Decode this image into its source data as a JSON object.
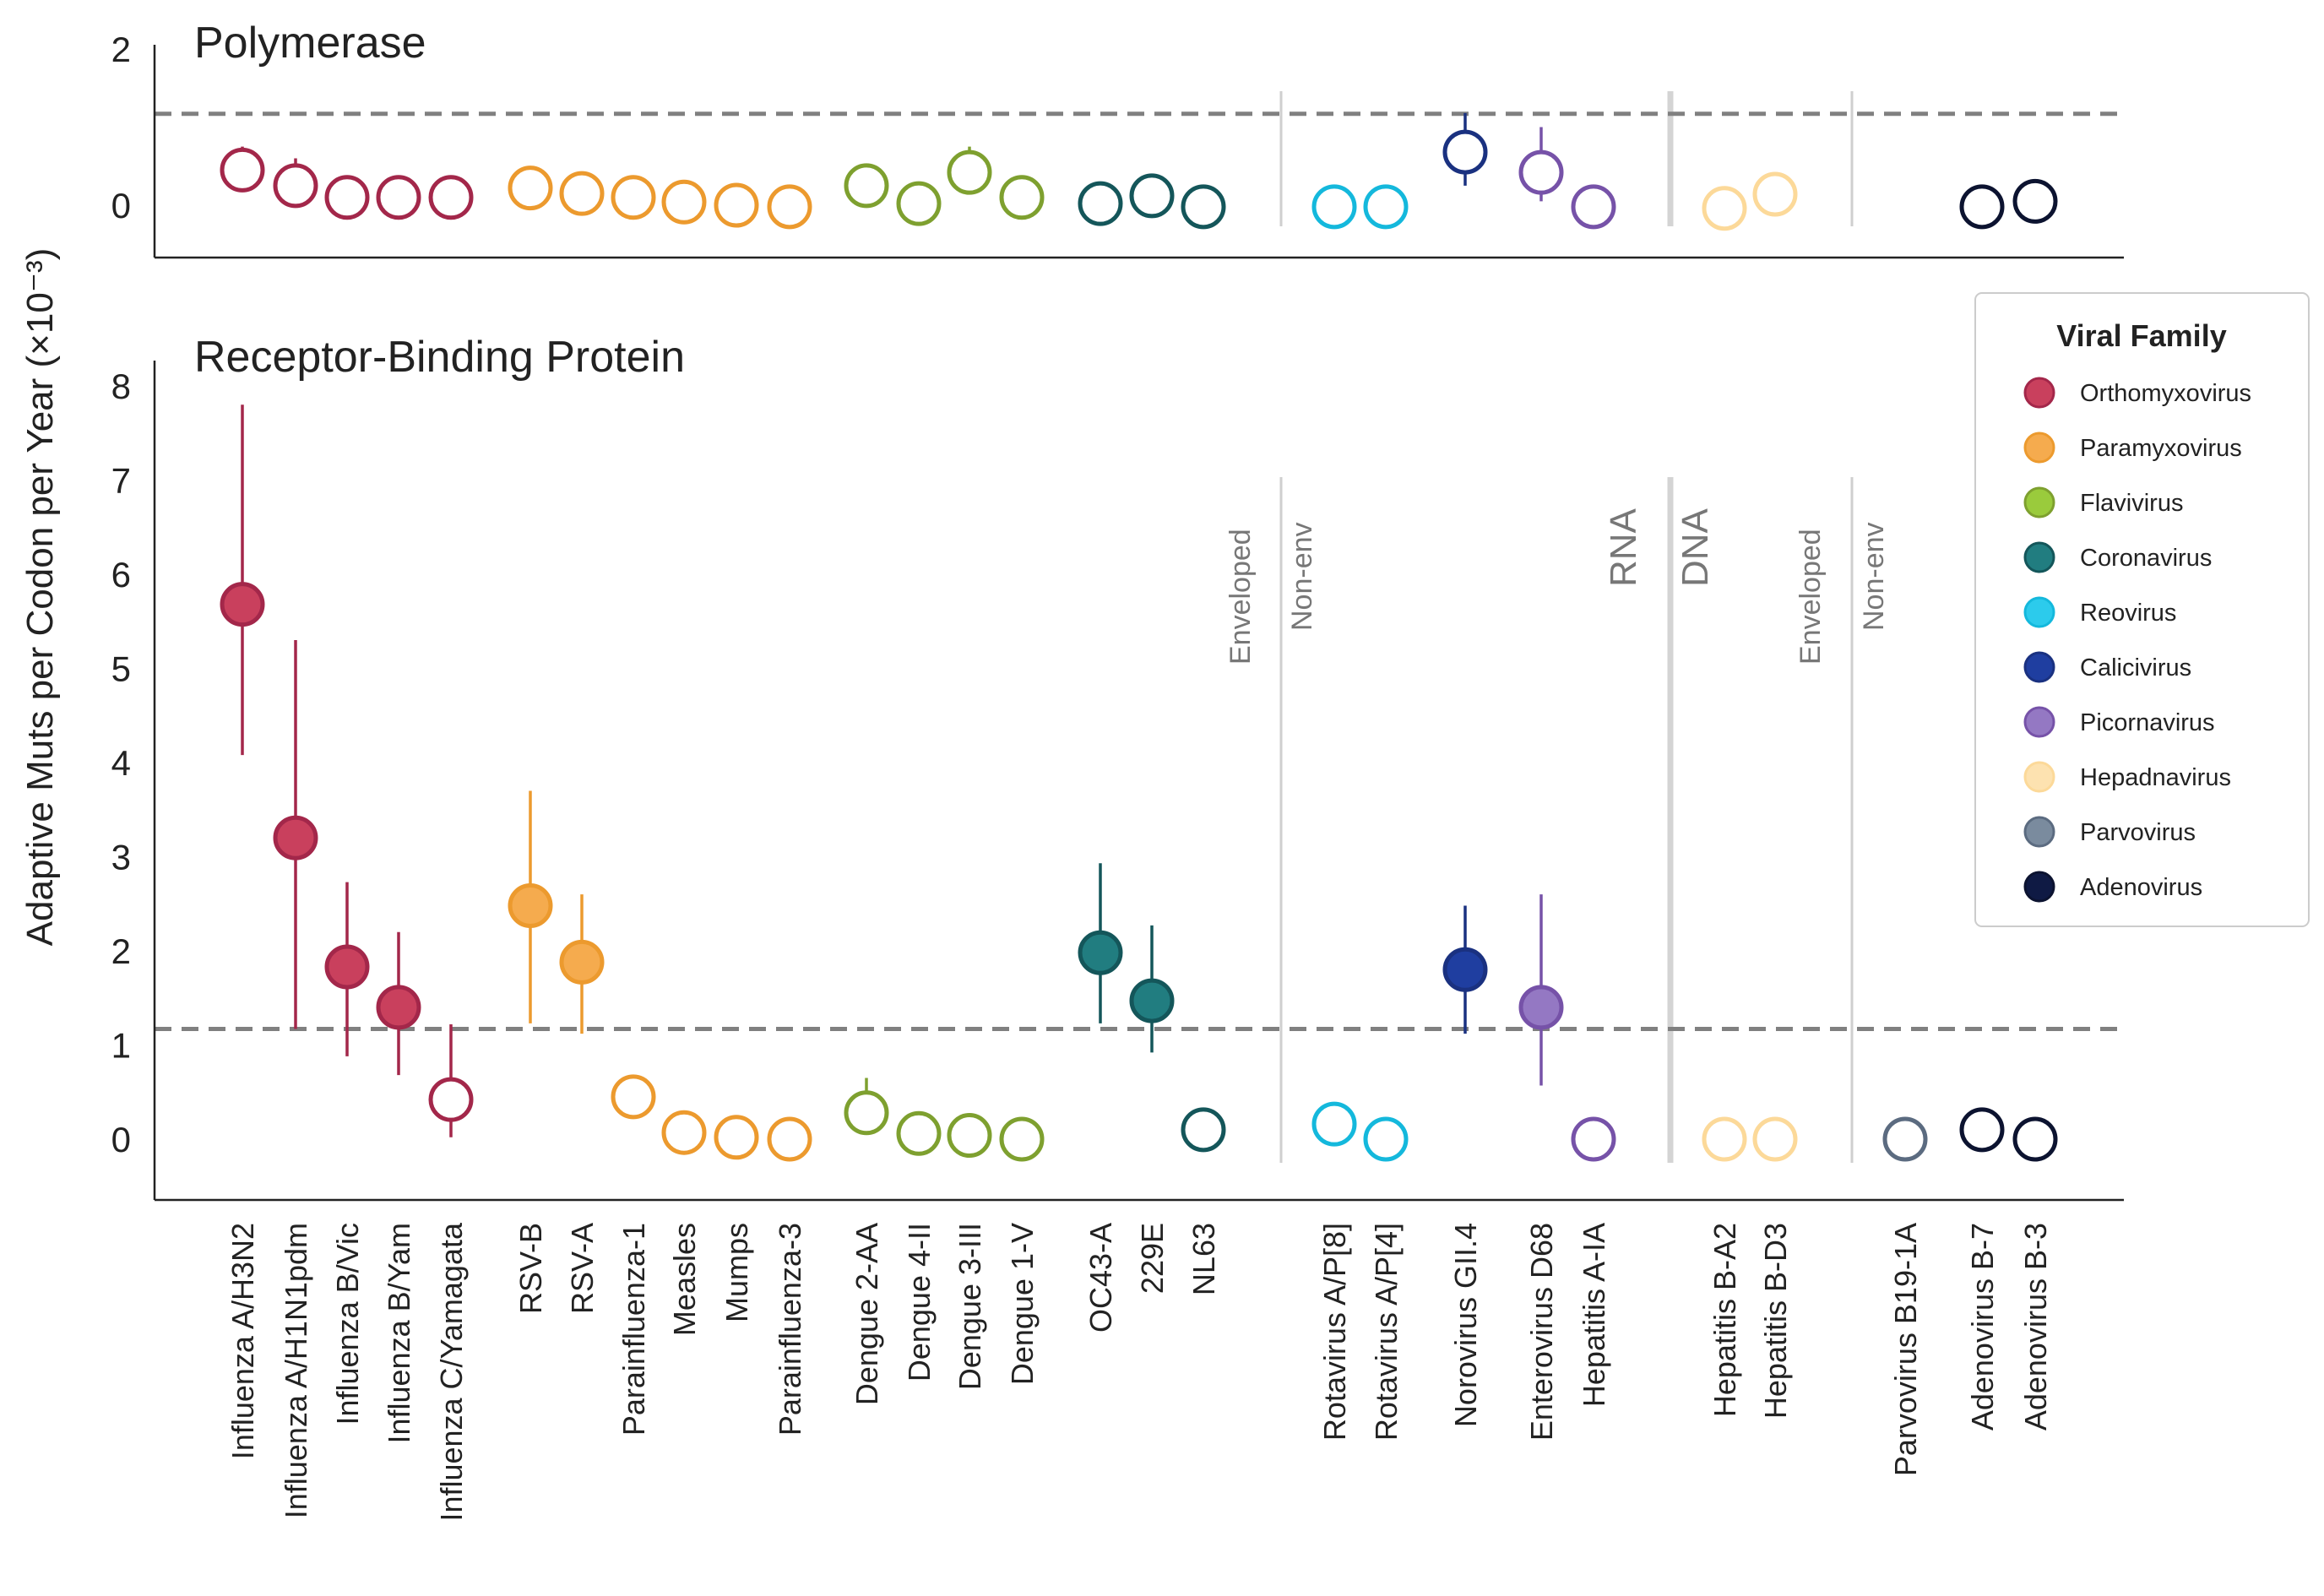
{
  "chart_data": {
    "type": "scatter",
    "ylabel": "Adaptive Muts per Codon per Year (×10⁻³)",
    "viruses": [
      "Influenza A/H3N2",
      "Influenza A/H1N1pdm",
      "Influenza B/Vic",
      "Influenza B/Yam",
      "Influenza C/Yamagata",
      "RSV-B",
      "RSV-A",
      "Parainfluenza-1",
      "Measles",
      "Mumps",
      "Parainfluenza-3",
      "Dengue 2-AA",
      "Dengue 4-II",
      "Dengue 3-III",
      "Dengue 1-V",
      "OC43-A",
      "229E",
      "NL63",
      "Rotavirus A/P[8]",
      "Rotavirus A/P[4]",
      "Norovirus GII.4",
      "Enterovirus D68",
      "Hepatitis A-IA",
      "Hepatitis B-A2",
      "Hepatitis B-D3",
      "Parvovirus B19-1A",
      "Adenovirus B-7",
      "Adenovirus B-3"
    ],
    "families": [
      "Orthomyxovirus",
      "Orthomyxovirus",
      "Orthomyxovirus",
      "Orthomyxovirus",
      "Orthomyxovirus",
      "Paramyxovirus",
      "Paramyxovirus",
      "Paramyxovirus",
      "Paramyxovirus",
      "Paramyxovirus",
      "Paramyxovirus",
      "Flavivirus",
      "Flavivirus",
      "Flavivirus",
      "Flavivirus",
      "Coronavirus",
      "Coronavirus",
      "Coronavirus",
      "Reovirus",
      "Reovirus",
      "Calicivirus",
      "Picornavirus",
      "Picornavirus",
      "Hepadnavirus",
      "Hepadnavirus",
      "Parvovirus",
      "Adenovirus",
      "Adenovirus"
    ],
    "polymerase": {
      "title": "Polymerase",
      "yticks": [
        0,
        2
      ],
      "ylim": [
        -0.65,
        2.0
      ],
      "reference_line": 1.17,
      "points": [
        {
          "x": "Influenza A/H3N2",
          "y": 0.45,
          "lo": 0.45,
          "hi": 0.75,
          "filled": false
        },
        {
          "x": "Influenza A/H1N1pdm",
          "y": 0.25,
          "lo": 0.25,
          "hi": 0.6,
          "filled": false
        },
        {
          "x": "Influenza B/Vic",
          "y": 0.1,
          "filled": false
        },
        {
          "x": "Influenza B/Yam",
          "y": 0.1,
          "filled": false
        },
        {
          "x": "Influenza C/Yamagata",
          "y": 0.1,
          "filled": false
        },
        {
          "x": "RSV-B",
          "y": 0.22,
          "filled": false
        },
        {
          "x": "RSV-A",
          "y": 0.15,
          "filled": false
        },
        {
          "x": "Parainfluenza-1",
          "y": 0.1,
          "filled": false
        },
        {
          "x": "Measles",
          "y": 0.04,
          "filled": false
        },
        {
          "x": "Mumps",
          "y": 0.0,
          "filled": false
        },
        {
          "x": "Parainfluenza-3",
          "y": -0.02,
          "filled": false
        },
        {
          "x": "Dengue 2-AA",
          "y": 0.25,
          "filled": false
        },
        {
          "x": "Dengue 4-II",
          "y": 0.02,
          "filled": false
        },
        {
          "x": "Dengue 3-III",
          "y": 0.42,
          "lo": 0.42,
          "hi": 0.75,
          "filled": false
        },
        {
          "x": "Dengue 1-V",
          "y": 0.1,
          "filled": false
        },
        {
          "x": "OC43-A",
          "y": 0.02,
          "filled": false
        },
        {
          "x": "229E",
          "y": 0.12,
          "filled": false
        },
        {
          "x": "NL63",
          "y": -0.02,
          "filled": false
        },
        {
          "x": "Rotavirus A/P[8]",
          "y": -0.02,
          "filled": false
        },
        {
          "x": "Rotavirus A/P[4]",
          "y": -0.02,
          "filled": false
        },
        {
          "x": "Norovirus GII.4",
          "y": 0.68,
          "lo": 0.25,
          "hi": 1.18,
          "filled": false
        },
        {
          "x": "Enterovirus D68",
          "y": 0.42,
          "lo": 0.05,
          "hi": 1.0,
          "filled": false
        },
        {
          "x": "Hepatitis A-IA",
          "y": -0.02,
          "filled": false
        },
        {
          "x": "Hepatitis B-A2",
          "y": -0.04,
          "filled": false
        },
        {
          "x": "Hepatitis B-D3",
          "y": 0.14,
          "filled": false
        },
        {
          "x": "Adenovirus B-7",
          "y": -0.02,
          "filled": false
        },
        {
          "x": "Adenovirus B-3",
          "y": 0.05,
          "filled": false
        }
      ]
    },
    "receptor_binding": {
      "title": "Receptor-Binding Protein",
      "yticks": [
        0,
        1,
        2,
        3,
        4,
        5,
        6,
        7,
        8
      ],
      "ylim": [
        -0.65,
        8.2
      ],
      "reference_line": 1.17,
      "points": [
        {
          "x": "Influenza A/H3N2",
          "y": 5.68,
          "lo": 4.08,
          "hi": 7.8,
          "filled": true
        },
        {
          "x": "Influenza A/H1N1pdm",
          "y": 3.2,
          "lo": 1.17,
          "hi": 5.3,
          "filled": true
        },
        {
          "x": "Influenza B/Vic",
          "y": 1.83,
          "lo": 0.88,
          "hi": 2.73,
          "filled": true
        },
        {
          "x": "Influenza B/Yam",
          "y": 1.4,
          "lo": 0.68,
          "hi": 2.2,
          "filled": true
        },
        {
          "x": "Influenza C/Yamagata",
          "y": 0.42,
          "lo": 0.02,
          "hi": 1.22,
          "filled": false
        },
        {
          "x": "RSV-B",
          "y": 2.48,
          "lo": 1.23,
          "hi": 3.7,
          "filled": true
        },
        {
          "x": "RSV-A",
          "y": 1.88,
          "lo": 1.12,
          "hi": 2.6,
          "filled": true
        },
        {
          "x": "Parainfluenza-1",
          "y": 0.45,
          "filled": false
        },
        {
          "x": "Measles",
          "y": 0.07,
          "filled": false
        },
        {
          "x": "Mumps",
          "y": 0.02,
          "filled": false
        },
        {
          "x": "Parainfluenza-3",
          "y": 0.0,
          "filled": false
        },
        {
          "x": "Dengue 2-AA",
          "y": 0.28,
          "lo": 0.05,
          "hi": 0.65,
          "filled": false
        },
        {
          "x": "Dengue 4-II",
          "y": 0.06,
          "filled": false
        },
        {
          "x": "Dengue 3-III",
          "y": 0.04,
          "filled": false
        },
        {
          "x": "Dengue 1-V",
          "y": 0.0,
          "filled": false
        },
        {
          "x": "OC43-A",
          "y": 1.98,
          "lo": 1.23,
          "hi": 2.93,
          "filled": true
        },
        {
          "x": "229E",
          "y": 1.47,
          "lo": 0.92,
          "hi": 2.27,
          "filled": true
        },
        {
          "x": "NL63",
          "y": 0.1,
          "filled": false
        },
        {
          "x": "Rotavirus A/P[8]",
          "y": 0.16,
          "filled": false
        },
        {
          "x": "Rotavirus A/P[4]",
          "y": 0.0,
          "filled": false
        },
        {
          "x": "Norovirus GII.4",
          "y": 1.8,
          "lo": 1.12,
          "hi": 2.48,
          "filled": true
        },
        {
          "x": "Enterovirus D68",
          "y": 1.4,
          "lo": 0.57,
          "hi": 2.6,
          "filled": true
        },
        {
          "x": "Hepatitis A-IA",
          "y": 0.0,
          "filled": false
        },
        {
          "x": "Hepatitis B-A2",
          "y": 0.0,
          "filled": false
        },
        {
          "x": "Hepatitis B-D3",
          "y": 0.0,
          "filled": false
        },
        {
          "x": "Parvovirus B19-1A",
          "y": 0.0,
          "filled": false
        },
        {
          "x": "Adenovirus B-7",
          "y": 0.1,
          "filled": false
        },
        {
          "x": "Adenovirus B-3",
          "y": 0.0,
          "filled": false
        }
      ]
    },
    "group_labels": [
      {
        "text": "Enveloped",
        "size": "small"
      },
      {
        "text": "Non-env",
        "size": "small"
      },
      {
        "text": "RNA",
        "size": "large"
      },
      {
        "text": "DNA",
        "size": "large"
      },
      {
        "text": "Enveloped",
        "size": "small"
      },
      {
        "text": "Non-env",
        "size": "small"
      }
    ],
    "legend": {
      "title": "Viral Family",
      "placement": "right",
      "entries": [
        "Orthomyxovirus",
        "Paramyxovirus",
        "Flavivirus",
        "Coronavirus",
        "Reovirus",
        "Calicivirus",
        "Picornavirus",
        "Hepadnavirus",
        "Parvovirus",
        "Adenovirus"
      ]
    },
    "colors": {
      "Orthomyxovirus": {
        "stroke": "#a3274a",
        "fill": "#c9405d"
      },
      "Paramyxovirus": {
        "stroke": "#ec9a2e",
        "fill": "#f5ab4e"
      },
      "Flavivirus": {
        "stroke": "#7ea02f",
        "fill": "#9acb3c"
      },
      "Coronavirus": {
        "stroke": "#14565a",
        "fill": "#217d80"
      },
      "Reovirus": {
        "stroke": "#14b8dc",
        "fill": "#2ccbec"
      },
      "Calicivirus": {
        "stroke": "#1a3180",
        "fill": "#1f3ea0"
      },
      "Picornavirus": {
        "stroke": "#7652a8",
        "fill": "#9478c3"
      },
      "Hepadnavirus": {
        "stroke": "#fcd999",
        "fill": "#fde2b0"
      },
      "Parvovirus": {
        "stroke": "#5b6b80",
        "fill": "#7a8b9e"
      },
      "Adenovirus": {
        "stroke": "#0c1330",
        "fill": "#0f1a44"
      }
    }
  }
}
